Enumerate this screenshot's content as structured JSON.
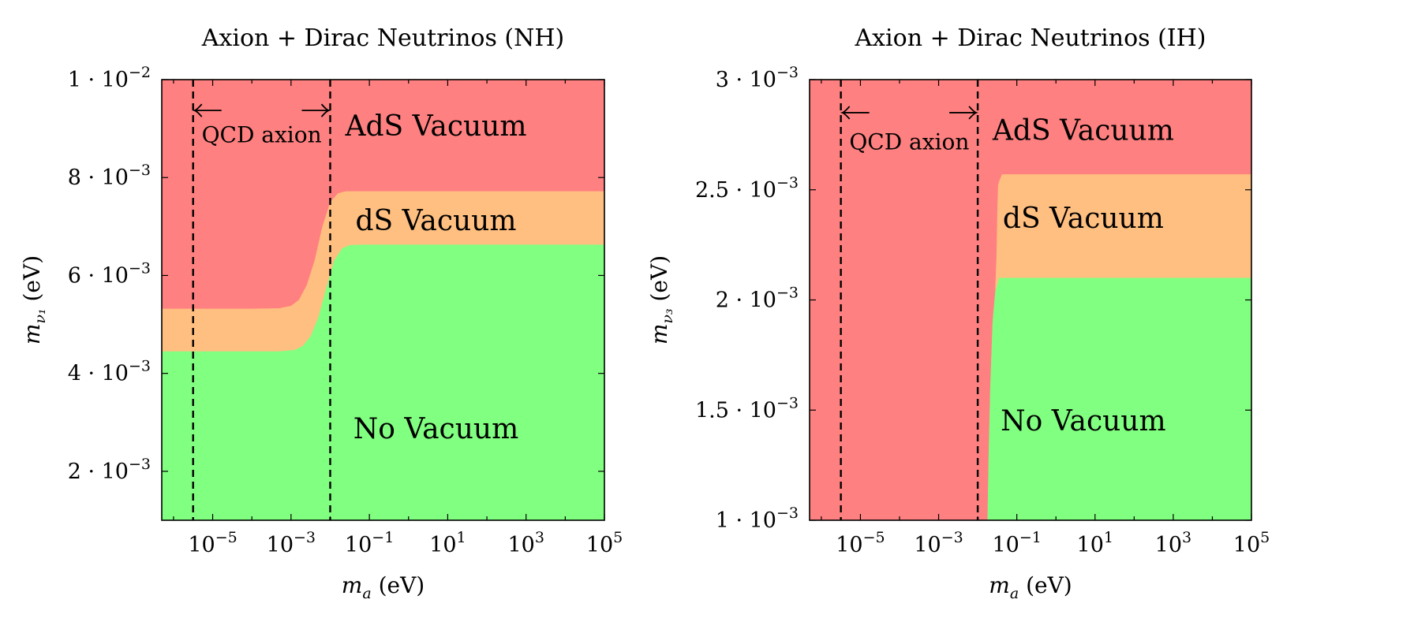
{
  "chart_data": [
    {
      "type": "area",
      "title": "Axion + Dirac Neutrinos (NH)",
      "xlabel": {
        "base": "m",
        "sub": "a",
        "unit": "(eV)"
      },
      "ylabel": {
        "base": "m",
        "sub": "ν₁",
        "unit": "(eV)"
      },
      "xscale": "log",
      "xlim_log10": [
        -6.3,
        5
      ],
      "ylim": [
        0.001,
        0.01
      ],
      "x_ticks": [
        {
          "exp": -5,
          "base": "10",
          "sup": "−5"
        },
        {
          "exp": -3,
          "base": "10",
          "sup": "−3"
        },
        {
          "exp": -1,
          "base": "10",
          "sup": "−1"
        },
        {
          "exp": 1,
          "base": "10",
          "sup": "1"
        },
        {
          "exp": 3,
          "base": "10",
          "sup": "3"
        },
        {
          "exp": 5,
          "base": "10",
          "sup": "5"
        }
      ],
      "y_ticks": [
        {
          "value": 0.002,
          "label": "2 · 10",
          "sup": "−3"
        },
        {
          "value": 0.004,
          "label": "4 · 10",
          "sup": "−3"
        },
        {
          "value": 0.006,
          "label": "6 · 10",
          "sup": "−3"
        },
        {
          "value": 0.008,
          "label": "8 · 10",
          "sup": "−3"
        },
        {
          "value": 0.01,
          "label": "1 · 10",
          "sup": "−2"
        }
      ],
      "colors": {
        "ads": "#ff8080",
        "ds": "#ffbf80",
        "none": "#80ff80"
      },
      "boundary_ds_lower": {
        "log10_ma": [
          -6.3,
          -4,
          -3.3,
          -2.9,
          -2.7,
          -2.5,
          -2.3,
          -2.1,
          -1.9,
          -1.7,
          -1.5,
          -1.2,
          5
        ],
        "m_nu": [
          0.00445,
          0.00445,
          0.00445,
          0.00448,
          0.00456,
          0.00476,
          0.00515,
          0.00575,
          0.0063,
          0.00655,
          0.00662,
          0.00663,
          0.00663
        ]
      },
      "boundary_ads_lower": {
        "log10_ma": [
          -6.3,
          -4,
          -3.3,
          -3.0,
          -2.8,
          -2.6,
          -2.4,
          -2.2,
          -2.0,
          -1.8,
          -1.6,
          -1.3,
          5
        ],
        "m_nu": [
          0.00532,
          0.00532,
          0.00533,
          0.00538,
          0.0055,
          0.0058,
          0.0063,
          0.007,
          0.0075,
          0.00768,
          0.00772,
          0.00772,
          0.00772
        ]
      },
      "qcd_band_log10": [
        -5.5,
        -2
      ],
      "region_labels": [
        {
          "text": "AdS Vacuum",
          "x_log10": 0.7,
          "y": 0.00905
        },
        {
          "text": "dS Vacuum",
          "x_log10": 0.7,
          "y": 0.00712
        },
        {
          "text": "No Vacuum",
          "x_log10": 0.7,
          "y": 0.00287
        }
      ],
      "annotation": {
        "text": "QCD axion",
        "y_arrow": 0.00937,
        "y_text": 0.00888
      }
    },
    {
      "type": "area",
      "title": "Axion + Dirac Neutrinos (IH)",
      "xlabel": {
        "base": "m",
        "sub": "a",
        "unit": "(eV)"
      },
      "ylabel": {
        "base": "m",
        "sub": "ν₃",
        "unit": "(eV)"
      },
      "xscale": "log",
      "xlim_log10": [
        -6.3,
        5
      ],
      "ylim": [
        0.001,
        0.003
      ],
      "x_ticks": [
        {
          "exp": -5,
          "base": "10",
          "sup": "−5"
        },
        {
          "exp": -3,
          "base": "10",
          "sup": "−3"
        },
        {
          "exp": -1,
          "base": "10",
          "sup": "−1"
        },
        {
          "exp": 1,
          "base": "10",
          "sup": "1"
        },
        {
          "exp": 3,
          "base": "10",
          "sup": "3"
        },
        {
          "exp": 5,
          "base": "10",
          "sup": "5"
        }
      ],
      "y_ticks": [
        {
          "value": 0.001,
          "label": "1 · 10",
          "sup": "−3"
        },
        {
          "value": 0.0015,
          "label": "1.5 · 10",
          "sup": "−3"
        },
        {
          "value": 0.002,
          "label": "2 · 10",
          "sup": "−3"
        },
        {
          "value": 0.0025,
          "label": "2.5 · 10",
          "sup": "−3"
        },
        {
          "value": 0.003,
          "label": "3 · 10",
          "sup": "−3"
        }
      ],
      "colors": {
        "ads": "#ff8080",
        "ds": "#ffbf80",
        "none": "#80ff80"
      },
      "boundary_green_left": {
        "log10_ma": [
          -1.75,
          -1.72,
          -1.68,
          -1.62,
          -1.55,
          -1.45,
          -1.3
        ],
        "m_nu": [
          0.001,
          0.0013,
          0.0016,
          0.0019,
          0.00204,
          0.0021,
          0.0021
        ]
      },
      "boundary_ds_left": {
        "log10_ma": [
          -1.55,
          -1.52,
          -1.5,
          -1.48,
          -1.45,
          -1.38,
          -1.3
        ],
        "m_nu": [
          0.00206,
          0.0022,
          0.0024,
          0.00252,
          0.00254,
          0.00257,
          0.00257
        ]
      },
      "ds_upper": 0.00257,
      "green_upper": 0.0021,
      "qcd_band_log10": [
        -5.5,
        -2
      ],
      "region_labels": [
        {
          "text": "AdS Vacuum",
          "x_log10": 0.7,
          "y": 0.00277
        },
        {
          "text": "dS Vacuum",
          "x_log10": 0.7,
          "y": 0.00237
        },
        {
          "text": "No Vacuum",
          "x_log10": 0.7,
          "y": 0.00145
        }
      ],
      "annotation": {
        "text": "QCD axion",
        "y_arrow": 0.00285,
        "y_text": 0.00272
      }
    }
  ]
}
